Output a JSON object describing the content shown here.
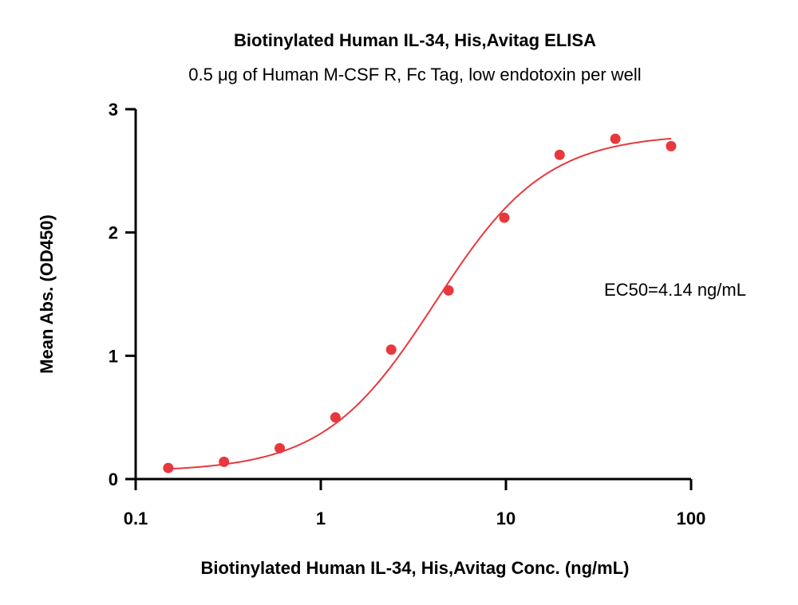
{
  "chart_data": {
    "type": "scatter",
    "title": "Biotinylated Human IL-34, His,Avitag ELISA",
    "subtitle": "0.5 μg of Human M-CSF R, Fc Tag, low endotoxin per well",
    "xlabel": "Biotinylated Human IL-34, His,Avitag Conc. (ng/mL)",
    "ylabel": "Mean Abs. (OD450)",
    "x_scale": "log",
    "xlim": [
      0.1,
      100
    ],
    "ylim": [
      0,
      3
    ],
    "x_ticks": [
      0.1,
      1,
      10,
      100
    ],
    "x_tick_labels": [
      "0.1",
      "1",
      "10",
      "100"
    ],
    "y_ticks": [
      0,
      1,
      2,
      3
    ],
    "y_tick_labels": [
      "0",
      "1",
      "2",
      "3"
    ],
    "grid": false,
    "annotation": "EC50=4.14 ng/mL",
    "color": "#e8383d",
    "points": [
      {
        "x": 0.15,
        "y": 0.09
      },
      {
        "x": 0.3,
        "y": 0.14
      },
      {
        "x": 0.6,
        "y": 0.25
      },
      {
        "x": 1.2,
        "y": 0.5
      },
      {
        "x": 2.4,
        "y": 1.05
      },
      {
        "x": 4.9,
        "y": 1.53
      },
      {
        "x": 9.8,
        "y": 2.12
      },
      {
        "x": 19.5,
        "y": 2.63
      },
      {
        "x": 39,
        "y": 2.76
      },
      {
        "x": 78,
        "y": 2.7
      }
    ],
    "fit": {
      "bottom": 0.06,
      "top": 2.8,
      "ec50": 4.14,
      "hill": 1.45
    }
  }
}
